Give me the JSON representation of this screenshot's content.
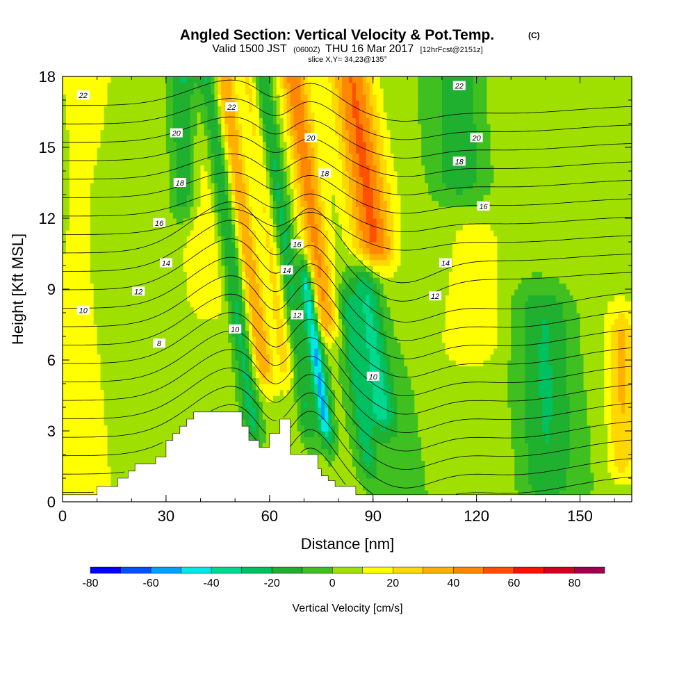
{
  "chart_data": {
    "type": "heatmap",
    "title": "Angled Section: Vertical Velocity & Pot.Temp.",
    "title_suffix": "(C)",
    "subtitle": {
      "valid": "Valid 1500 JST",
      "utc": "(0600Z)",
      "date": "THU 16 Mar 2017",
      "forecast": "[12hrFcst@2151z]"
    },
    "slice_label": "slice X,Y= 34,23@135°",
    "xlabel": "Distance [nm]",
    "ylabel": "Height [Kft MSL]",
    "xlim": [
      0,
      165
    ],
    "ylim": [
      0,
      18
    ],
    "x_ticks": [
      "0",
      "30",
      "60",
      "90",
      "120",
      "150"
    ],
    "x_tick_values": [
      0,
      30,
      60,
      90,
      120,
      150
    ],
    "y_ticks": [
      "0",
      "3",
      "6",
      "9",
      "12",
      "15",
      "18"
    ],
    "y_tick_values": [
      0,
      3,
      6,
      9,
      12,
      15,
      18
    ],
    "colorbar": {
      "title": "Vertical Velocity [cm/s]",
      "labels": [
        "-80",
        "-60",
        "-40",
        "-20",
        "0",
        "20",
        "40",
        "60",
        "80"
      ],
      "label_values": [
        -80,
        -60,
        -40,
        -20,
        0,
        20,
        40,
        60,
        80
      ],
      "bin_edges": [
        -80,
        -70,
        -60,
        -50,
        -40,
        -30,
        -20,
        -10,
        0,
        10,
        20,
        30,
        40,
        50,
        60,
        70,
        80,
        90
      ],
      "colors": [
        "#0000ff",
        "#0050ff",
        "#00a0ff",
        "#00e8e8",
        "#00d890",
        "#00c060",
        "#20b030",
        "#40c020",
        "#a0e000",
        "#ffff00",
        "#ffd800",
        "#ffb000",
        "#ff8800",
        "#ff5000",
        "#ff1000",
        "#d00020",
        "#a00050",
        "#600090"
      ]
    },
    "vertical_velocity_field": {
      "units": "cm/s",
      "features": [
        {
          "x": 5,
          "y0": 0,
          "y1": 18,
          "w": 8,
          "v": 10
        },
        {
          "x": 35,
          "y0": 13,
          "y1": 18,
          "w": 4,
          "v": -25
        },
        {
          "x": 42,
          "y0": 9,
          "y1": 17,
          "w": 6,
          "v": 12
        },
        {
          "x": 50,
          "y0": 3.5,
          "y1": 18,
          "w": 3,
          "v": -30
        },
        {
          "x": 55,
          "y0": 6,
          "y1": 18,
          "w": 3,
          "v": 35
        },
        {
          "x": 62,
          "y0": 6,
          "y1": 18,
          "w": 3,
          "v": 20
        },
        {
          "x": 66,
          "y0": 3.5,
          "y1": 18,
          "w": 2.5,
          "v": -25
        },
        {
          "x": 71,
          "y0": 3.5,
          "y1": 9,
          "w": 2,
          "v": -55
        },
        {
          "x": 75,
          "y0": 8,
          "y1": 18,
          "w": 4,
          "v": 40
        },
        {
          "x": 82,
          "y0": 2,
          "y1": 8,
          "w": 3,
          "v": -25
        },
        {
          "x": 88,
          "y0": 4,
          "y1": 9,
          "w": 4,
          "v": -35
        },
        {
          "x": 92,
          "y0": 11,
          "y1": 18,
          "w": 6,
          "v": 45
        },
        {
          "x": 100,
          "y0": 0,
          "y1": 11,
          "w": 6,
          "v": -5
        },
        {
          "x": 115,
          "y0": 14,
          "y1": 18,
          "w": 7,
          "v": -20
        },
        {
          "x": 120,
          "y0": 7,
          "y1": 11,
          "w": 8,
          "v": 15
        },
        {
          "x": 140,
          "y0": 1,
          "y1": 8,
          "w": 8,
          "v": -22
        },
        {
          "x": 162,
          "y0": 2,
          "y1": 7,
          "w": 4,
          "v": 25
        }
      ]
    },
    "terrain": {
      "x": [
        0,
        10,
        10,
        16,
        16,
        19,
        19,
        21,
        21,
        23,
        23,
        27,
        27,
        30,
        30,
        32,
        32,
        34,
        34,
        36,
        36,
        38,
        38,
        40,
        40,
        42,
        42,
        52,
        52,
        54,
        54,
        57,
        57,
        60,
        60,
        63,
        63,
        66,
        66,
        74,
        74,
        75,
        75,
        77,
        77,
        79,
        79,
        81,
        81,
        83,
        83,
        85,
        85,
        91,
        91,
        165
      ],
      "y": [
        0.3,
        0.3,
        0.65,
        0.65,
        1.0,
        1.0,
        1.3,
        1.3,
        1.6,
        1.6,
        1.6,
        1.6,
        1.9,
        1.9,
        2.6,
        2.6,
        2.9,
        2.9,
        3.2,
        3.2,
        3.5,
        3.5,
        3.8,
        3.8,
        3.8,
        3.8,
        3.8,
        3.8,
        3.2,
        3.2,
        2.6,
        2.6,
        2.3,
        2.3,
        2.9,
        2.9,
        3.5,
        3.5,
        2.0,
        2.0,
        1.4,
        1.4,
        1.1,
        1.1,
        0.9,
        0.9,
        0.65,
        0.65,
        0.65,
        0.65,
        0.65,
        0.65,
        0.3,
        0.3,
        0.3,
        0.3
      ]
    },
    "potential_temperature_contours": {
      "units": "C",
      "levels": [
        2,
        3,
        4,
        5,
        6,
        7,
        8,
        9,
        10,
        11,
        12,
        13,
        14,
        15,
        16,
        17,
        18,
        19,
        20,
        21,
        22,
        23
      ],
      "labels": [
        {
          "text": "22",
          "x": 6,
          "y": 17.2
        },
        {
          "text": "22",
          "x": 49,
          "y": 16.7
        },
        {
          "text": "20",
          "x": 33,
          "y": 15.6
        },
        {
          "text": "20",
          "x": 72,
          "y": 15.4
        },
        {
          "text": "18",
          "x": 34,
          "y": 13.5
        },
        {
          "text": "18",
          "x": 76,
          "y": 13.9
        },
        {
          "text": "16",
          "x": 28,
          "y": 11.8
        },
        {
          "text": "16",
          "x": 68,
          "y": 10.9
        },
        {
          "text": "14",
          "x": 30,
          "y": 10.1
        },
        {
          "text": "14",
          "x": 65,
          "y": 9.8
        },
        {
          "text": "12",
          "x": 22,
          "y": 8.9
        },
        {
          "text": "12",
          "x": 68,
          "y": 7.9
        },
        {
          "text": "10",
          "x": 6,
          "y": 8.1
        },
        {
          "text": "10",
          "x": 50,
          "y": 7.3
        },
        {
          "text": "8",
          "x": 28,
          "y": 6.7
        },
        {
          "text": "22",
          "x": 115,
          "y": 17.6
        },
        {
          "text": "20",
          "x": 120,
          "y": 15.4
        },
        {
          "text": "18",
          "x": 115,
          "y": 14.4
        },
        {
          "text": "16",
          "x": 122,
          "y": 12.5
        },
        {
          "text": "14",
          "x": 111,
          "y": 10.1
        },
        {
          "text": "12",
          "x": 108,
          "y": 8.7
        },
        {
          "text": "10",
          "x": 90,
          "y": 5.3
        }
      ]
    }
  }
}
